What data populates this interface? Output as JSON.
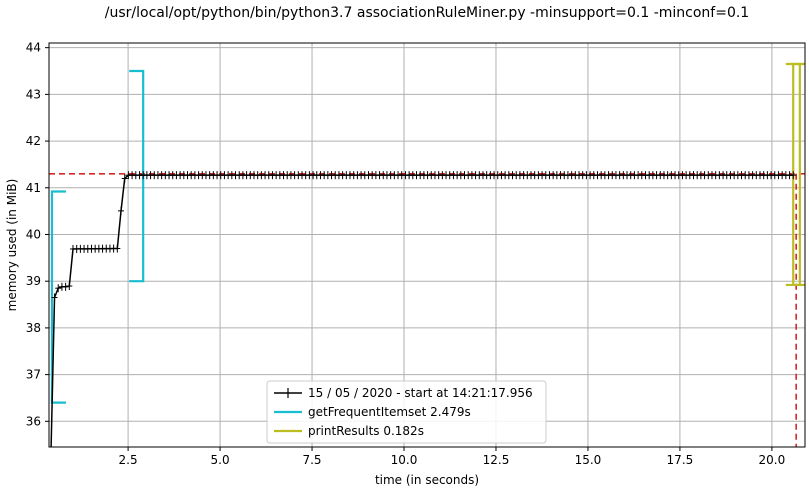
{
  "chart_data": {
    "type": "line",
    "title": "/usr/local/opt/python/bin/python3.7 associationRuleMiner.py -minsupport=0.1 -minconf=0.1",
    "xlabel": "time (in seconds)",
    "ylabel": "memory used (in MiB)",
    "xlim": [
      0.35,
      20.9
    ],
    "ylim": [
      35.45,
      44.1
    ],
    "xticks": [
      2.5,
      5.0,
      7.5,
      10.0,
      12.5,
      15.0,
      17.5,
      20.0
    ],
    "xtick_labels": [
      "2.5",
      "5.0",
      "7.5",
      "10.0",
      "12.5",
      "15.0",
      "17.5",
      "20.0"
    ],
    "yticks": [
      36,
      37,
      38,
      39,
      40,
      41,
      42,
      43,
      44
    ],
    "ytick_labels": [
      "36",
      "37",
      "38",
      "39",
      "40",
      "41",
      "42",
      "43",
      "44"
    ],
    "grid": true,
    "legend_position": "bottom-center",
    "series": [
      {
        "name": "15 / 05 / 2020 - start at 14:21:17.956",
        "color": "#000000",
        "marker": "plus",
        "x_start": 0.4,
        "x_end": 20.58,
        "sample_count": 202,
        "steps": [
          {
            "x": 0.4,
            "y": 35.2
          },
          {
            "x": 0.45,
            "y": 38.1
          },
          {
            "x": 0.5,
            "y": 38.65
          },
          {
            "x": 0.6,
            "y": 38.85
          },
          {
            "x": 0.7,
            "y": 38.88
          },
          {
            "x": 0.9,
            "y": 38.88
          },
          {
            "x": 1.0,
            "y": 39.69
          },
          {
            "x": 2.25,
            "y": 39.7
          },
          {
            "x": 2.35,
            "y": 41.1
          },
          {
            "x": 2.45,
            "y": 41.27
          },
          {
            "x": 20.58,
            "y": 41.27
          }
        ]
      }
    ],
    "brackets": [
      {
        "name": "getFrequentItemset 2.479s",
        "color": "#17becf",
        "start": 0.43,
        "end": 2.91,
        "y_low_start": 36.4,
        "y_high_start": 40.92,
        "y_low_end": 39.0,
        "y_high_end": 43.5
      },
      {
        "name": "printResults 0.182s",
        "color": "#bcbd22",
        "start": 20.58,
        "end": 20.76,
        "y_low_start": 38.92,
        "y_high_start": 43.65,
        "y_low_end": 38.92,
        "y_high_end": 43.65
      }
    ],
    "max_memory_y": 41.3,
    "max_memory_x": 20.66,
    "max_marker_color": "#d62728"
  }
}
